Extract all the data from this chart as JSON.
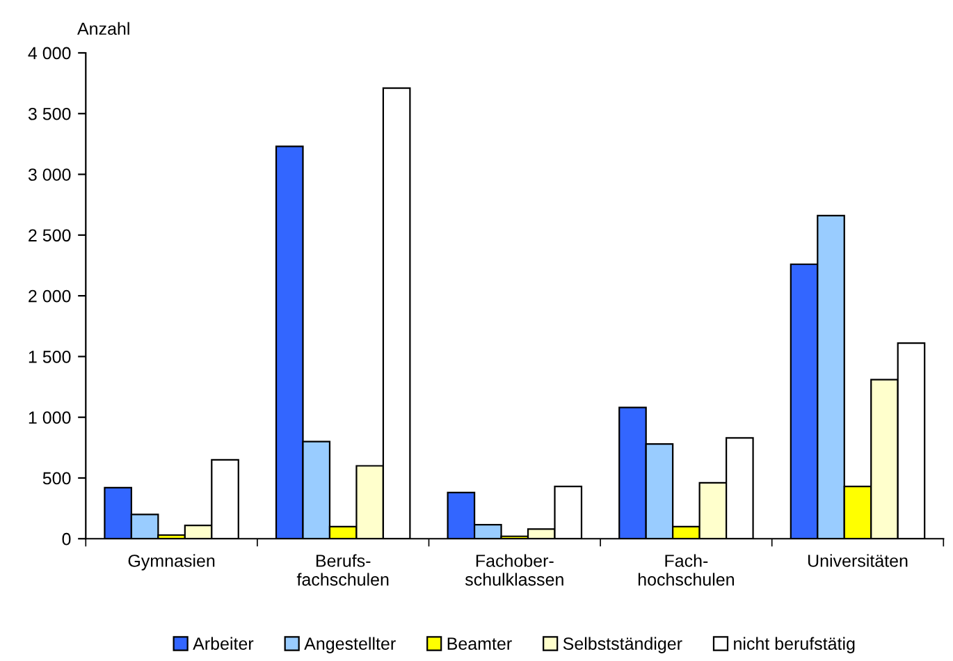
{
  "chart_data": {
    "type": "bar",
    "ylabel": "Anzahl",
    "categories": [
      "Gymnasien",
      "Berufs-\nfachschulen",
      "Fachober-\nschulklassen",
      "Fach-\nhochschulen",
      "Universitäten"
    ],
    "series": [
      {
        "name": "Arbeiter",
        "color": "#3366ff",
        "values": [
          420,
          3230,
          380,
          1080,
          2260
        ]
      },
      {
        "name": "Angestellter",
        "color": "#99ccff",
        "values": [
          200,
          800,
          115,
          780,
          2660
        ]
      },
      {
        "name": "Beamter",
        "color": "#ffff00",
        "values": [
          30,
          100,
          20,
          100,
          430
        ]
      },
      {
        "name": "Selbstständiger",
        "color": "#ffffcc",
        "values": [
          110,
          600,
          80,
          460,
          1310
        ]
      },
      {
        "name": "nicht berufstätig",
        "color": "#ffffff",
        "values": [
          650,
          3710,
          430,
          830,
          1610
        ]
      }
    ],
    "ylim": [
      0,
      4000
    ],
    "yticks": [
      0,
      500,
      {
        "value": 1000,
        "label": "1 000"
      },
      {
        "value": 1500,
        "label": "1 500"
      },
      {
        "value": 2000,
        "label": "2 000"
      },
      {
        "value": 2500,
        "label": "2 500"
      },
      {
        "value": 3000,
        "label": "3 000"
      },
      {
        "value": 3500,
        "label": "3 500"
      },
      {
        "value": 4000,
        "label": "4 000"
      }
    ],
    "grid": false,
    "legend": "bottom"
  }
}
